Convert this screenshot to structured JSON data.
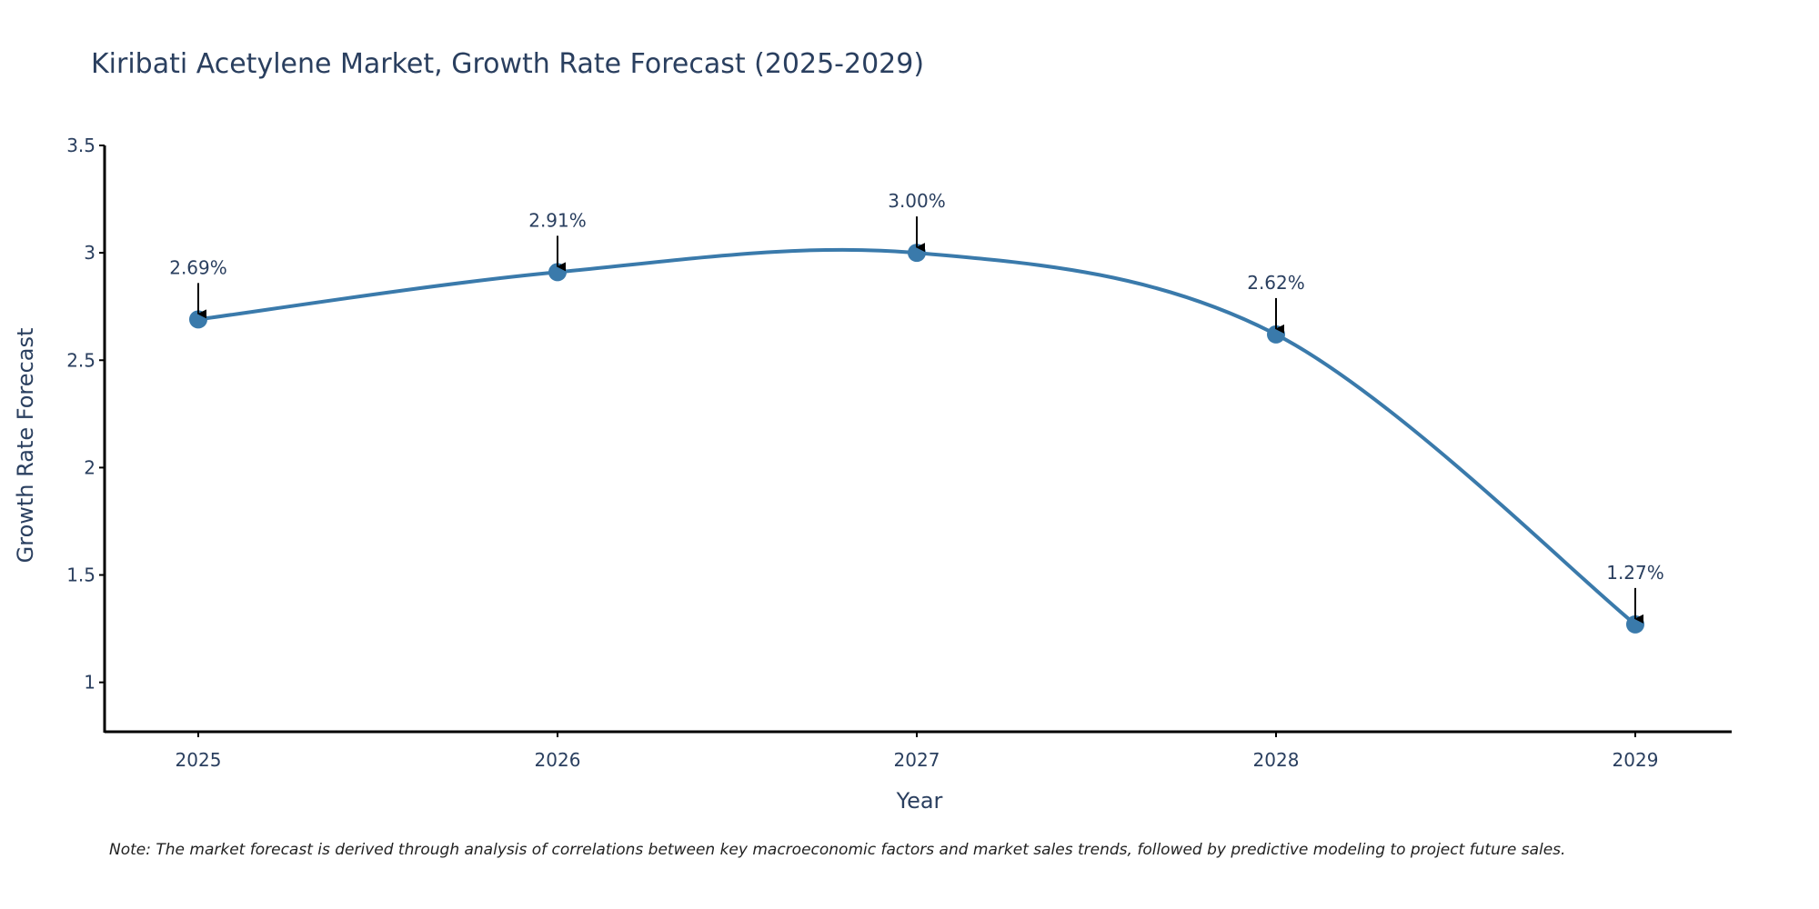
{
  "chart_data": {
    "type": "line",
    "title": "Kiribati Acetylene Market, Growth Rate Forecast (2025-2029)",
    "xlabel": "Year",
    "ylabel": "Growth Rate Forecast",
    "categories": [
      "2025",
      "2026",
      "2027",
      "2028",
      "2029"
    ],
    "series": [
      {
        "name": "Growth Rate Forecast",
        "values": [
          2.69,
          2.91,
          3.0,
          2.62,
          1.27
        ],
        "labels": [
          "2.69%",
          "2.91%",
          "3.00%",
          "2.62%",
          "1.27%"
        ]
      }
    ],
    "ylim": [
      0.77,
      3.5
    ],
    "yticks": [
      1,
      1.5,
      2,
      2.5,
      3,
      3.5
    ],
    "ytick_labels": [
      "1",
      "1.5",
      "2",
      "2.5",
      "3",
      "3.5"
    ],
    "grid": false,
    "note": "Note: The market forecast is derived through analysis of correlations between key macroeconomic factors and market sales trends, followed by predictive modeling to project future sales."
  },
  "colors": {
    "line": "#3a7aab",
    "marker": "#3a7aab",
    "text": "#2a3f5f",
    "axis": "#000000",
    "arrow": "#000000"
  }
}
